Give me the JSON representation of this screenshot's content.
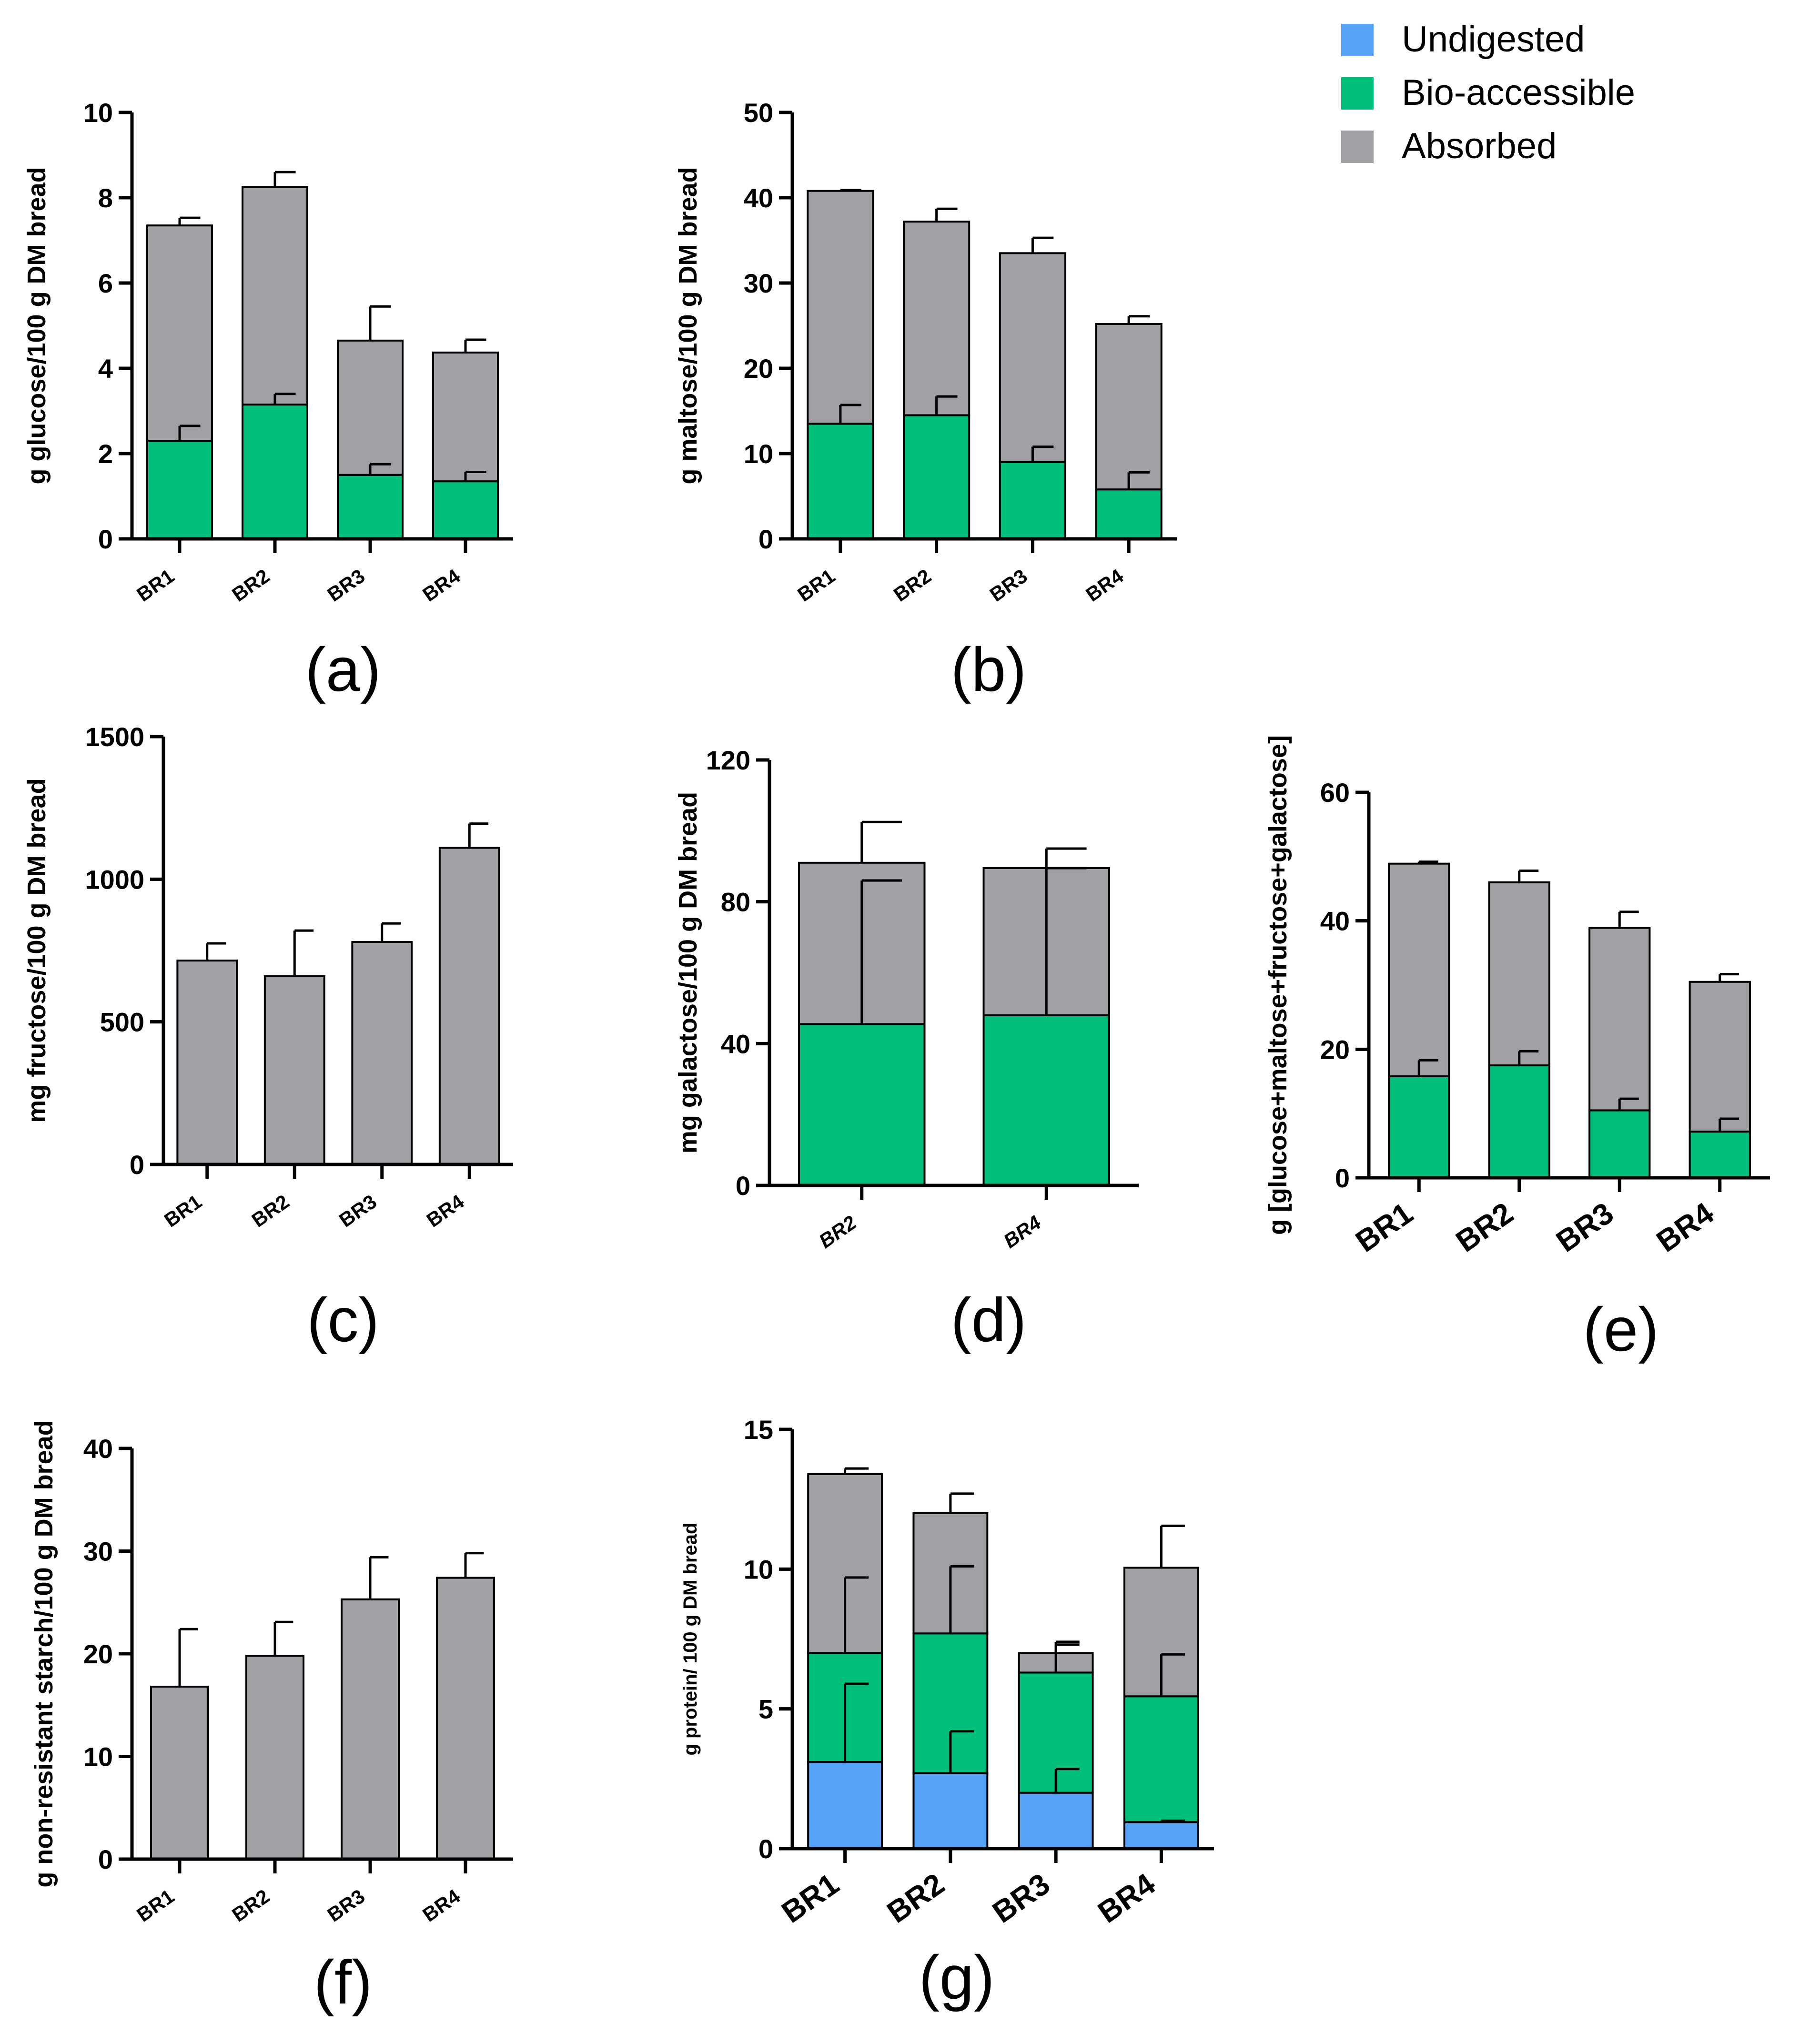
{
  "colors": {
    "undigested": "#56A2F7",
    "bioaccessible": "#00BF7A",
    "absorbed": "#A0A0A5",
    "axis": "#000000"
  },
  "legend": [
    {
      "key": "undigested",
      "label": "Undigested"
    },
    {
      "key": "bioaccessible",
      "label": "Bio-accessible"
    },
    {
      "key": "absorbed",
      "label": "Absorbed"
    }
  ],
  "chart_data": [
    {
      "id": "a",
      "panel_label": "(a)",
      "type": "bar",
      "stacked": true,
      "ylabel": "g glucose/100 g DM bread",
      "ylim": [
        0,
        10
      ],
      "yticks": [
        0,
        2,
        4,
        6,
        8,
        10
      ],
      "categories": [
        "BR1",
        "BR2",
        "BR3",
        "BR4"
      ],
      "series": [
        {
          "key": "bioaccessible",
          "values": [
            2.3,
            3.15,
            1.5,
            1.35
          ],
          "errors": [
            0.35,
            0.25,
            0.25,
            0.22
          ]
        },
        {
          "key": "absorbed",
          "values": [
            5.05,
            5.1,
            3.15,
            3.02
          ],
          "errors": [
            0.18,
            0.35,
            0.8,
            0.3
          ]
        }
      ]
    },
    {
      "id": "b",
      "panel_label": "(b)",
      "type": "bar",
      "stacked": true,
      "ylabel": "g maltose/100 g DM bread",
      "ylim": [
        0,
        50
      ],
      "yticks": [
        0,
        10,
        20,
        30,
        40,
        50
      ],
      "categories": [
        "BR1",
        "BR2",
        "BR3",
        "BR4"
      ],
      "series": [
        {
          "key": "bioaccessible",
          "values": [
            13.5,
            14.5,
            9.0,
            5.8
          ],
          "errors": [
            2.2,
            2.2,
            1.8,
            2.0
          ]
        },
        {
          "key": "absorbed",
          "values": [
            27.3,
            22.7,
            24.5,
            19.4
          ],
          "errors": [
            0.1,
            1.5,
            1.8,
            0.9
          ]
        }
      ]
    },
    {
      "id": "c",
      "panel_label": "(c)",
      "type": "bar",
      "stacked": true,
      "ylabel": "mg fructose/100 g DM bread",
      "ylim": [
        0,
        1500
      ],
      "yticks": [
        0,
        500,
        1000,
        1500
      ],
      "categories": [
        "BR1",
        "BR2",
        "BR3",
        "BR4"
      ],
      "series": [
        {
          "key": "absorbed",
          "values": [
            715,
            660,
            780,
            1110
          ],
          "errors": [
            60,
            160,
            65,
            85
          ]
        }
      ]
    },
    {
      "id": "d",
      "panel_label": "(d)",
      "type": "bar",
      "stacked": true,
      "ylabel": "mg galactose/100 g DM bread",
      "ylim": [
        0,
        120
      ],
      "yticks": [
        0,
        40,
        80,
        120
      ],
      "categories": [
        "BR2",
        "BR4"
      ],
      "series": [
        {
          "key": "bioaccessible",
          "values": [
            45.5,
            48.0
          ],
          "errors": [
            40.5,
            41.5
          ]
        },
        {
          "key": "absorbed",
          "values": [
            45.5,
            41.5
          ],
          "errors": [
            11.5,
            5.5
          ]
        }
      ]
    },
    {
      "id": "e",
      "panel_label": "(e)",
      "type": "bar",
      "stacked": true,
      "ylabel": "g [glucose+maltose+fructose+galactose]",
      "ylim": [
        0,
        60
      ],
      "yticks": [
        0,
        20,
        40,
        60
      ],
      "categories": [
        "BR1",
        "BR2",
        "BR3",
        "BR4"
      ],
      "series": [
        {
          "key": "bioaccessible",
          "values": [
            15.8,
            17.5,
            10.5,
            7.2
          ],
          "errors": [
            2.5,
            2.2,
            1.8,
            2.0
          ]
        },
        {
          "key": "absorbed",
          "values": [
            33.1,
            28.5,
            28.4,
            23.3
          ],
          "errors": [
            0.3,
            1.8,
            2.5,
            1.2
          ]
        }
      ]
    },
    {
      "id": "f",
      "panel_label": "(f)",
      "type": "bar",
      "stacked": true,
      "ylabel": "g non-resistant starch/100 g DM bread",
      "ylim": [
        0,
        40
      ],
      "yticks": [
        0,
        10,
        20,
        30,
        40
      ],
      "categories": [
        "BR1",
        "BR2",
        "BR3",
        "BR4"
      ],
      "series": [
        {
          "key": "absorbed",
          "values": [
            16.8,
            19.8,
            25.3,
            27.4
          ],
          "errors": [
            5.6,
            3.3,
            4.1,
            2.4
          ]
        }
      ]
    },
    {
      "id": "g",
      "panel_label": "(g)",
      "type": "bar",
      "stacked": true,
      "ylabel": "g protein/ 100 g DM bread",
      "ylim": [
        0,
        15
      ],
      "yticks": [
        0,
        5,
        10,
        15
      ],
      "categories": [
        "BR1",
        "BR2",
        "BR3",
        "BR4"
      ],
      "series": [
        {
          "key": "undigested",
          "values": [
            3.1,
            2.7,
            2.0,
            0.95
          ],
          "errors": [
            2.8,
            1.5,
            0.85,
            0.05
          ]
        },
        {
          "key": "bioaccessible",
          "values": [
            3.9,
            5.0,
            4.3,
            4.5
          ],
          "errors": [
            2.7,
            2.4,
            1.0,
            1.5
          ]
        },
        {
          "key": "absorbed",
          "values": [
            6.4,
            4.3,
            0.7,
            4.6
          ],
          "errors": [
            0.2,
            0.7,
            0.4,
            1.5
          ]
        }
      ]
    }
  ]
}
